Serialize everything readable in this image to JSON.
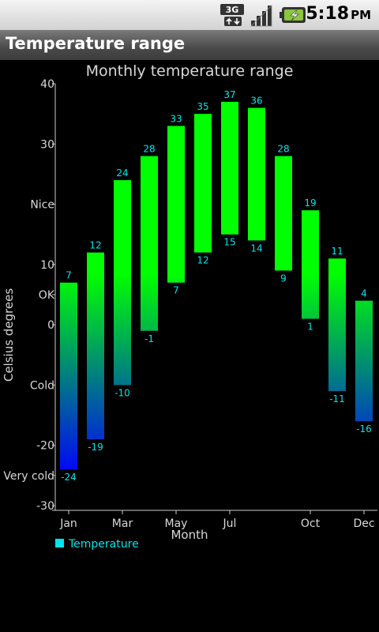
{
  "status_bar": {
    "time": "5:18",
    "ampm": "PM",
    "icons": [
      "3g-data-icon",
      "signal-strength-icon",
      "battery-charging-icon"
    ]
  },
  "app_bar": {
    "title": "Temperature range"
  },
  "colors": {
    "label": "#00e5ee",
    "high": "#00ff00",
    "low": "#0000ff",
    "axis": "#cccccc"
  },
  "chart_data": {
    "type": "bar",
    "subtype": "range",
    "title": "Monthly temperature range",
    "xlabel": "Month",
    "ylabel": "Celsius degrees",
    "ylim": [
      -30,
      40
    ],
    "xlim": [
      0.5,
      12.5
    ],
    "grid": false,
    "legend": {
      "position": "bottom-left",
      "entries": [
        "Temperature"
      ]
    },
    "x_tick_labels": [
      {
        "x": 1,
        "label": "Jan"
      },
      {
        "x": 3,
        "label": "Mar"
      },
      {
        "x": 5,
        "label": "May"
      },
      {
        "x": 7,
        "label": "Jul"
      },
      {
        "x": 10,
        "label": "Oct"
      },
      {
        "x": 12,
        "label": "Dec"
      }
    ],
    "y_tick_labels": [
      {
        "y": 40,
        "label": "40"
      },
      {
        "y": 30,
        "label": "30"
      },
      {
        "y": 20,
        "label": "Nice"
      },
      {
        "y": 10,
        "label": "10"
      },
      {
        "y": 5,
        "label": "OK"
      },
      {
        "y": 0,
        "label": "0"
      },
      {
        "y": -10,
        "label": "Cold"
      },
      {
        "y": -20,
        "label": "-20"
      },
      {
        "y": -25,
        "label": "Very cold"
      },
      {
        "y": -30,
        "label": "-30"
      }
    ],
    "series": [
      {
        "name": "Temperature",
        "months": [
          1,
          2,
          3,
          4,
          5,
          6,
          7,
          8,
          9,
          10,
          11,
          12
        ],
        "low": [
          -24,
          -19,
          -10,
          -1,
          7,
          12,
          15,
          14,
          9,
          1,
          -11,
          -16
        ],
        "high": [
          7,
          12,
          24,
          28,
          33,
          35,
          37,
          36,
          28,
          19,
          11,
          4
        ]
      }
    ]
  }
}
